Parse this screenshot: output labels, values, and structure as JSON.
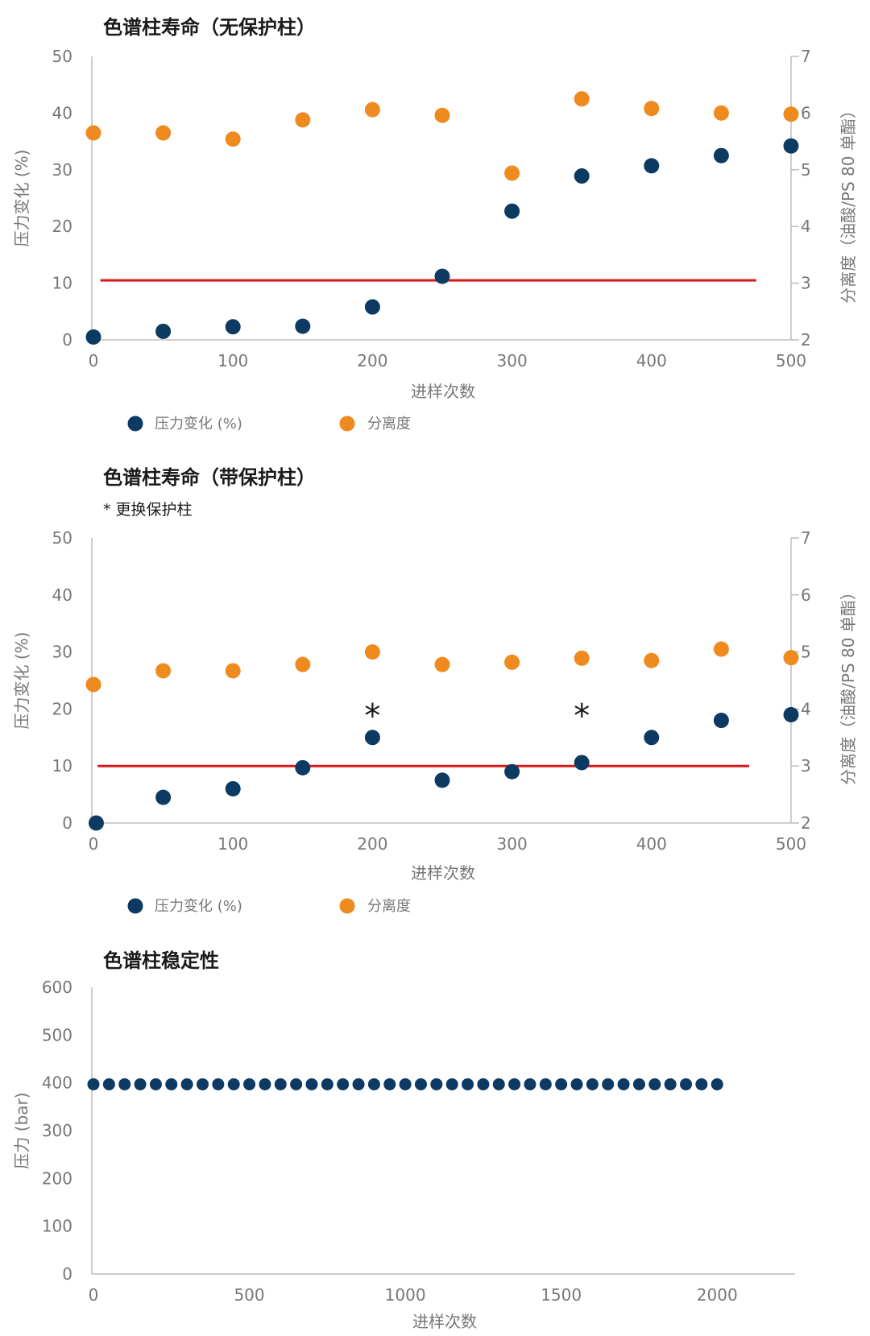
{
  "chart_data": [
    {
      "type": "scatter",
      "title": "色谱柱寿命（无保护柱）",
      "xlabel": "进样次数",
      "ylabel": "压力变化 (%)",
      "y2label": "分离度（油酸/PS 80 单酯）",
      "xlim": [
        0,
        500
      ],
      "ylim": [
        0,
        50
      ],
      "y2lim": [
        2,
        7
      ],
      "xticks": [
        "0",
        "100",
        "200",
        "300",
        "400",
        "500"
      ],
      "yticks": [
        "0",
        "10",
        "20",
        "30",
        "40",
        "50"
      ],
      "y2ticks": [
        "2",
        "3",
        "4",
        "5",
        "6",
        "7"
      ],
      "reference_line": {
        "y": 10.5,
        "x_range": [
          5,
          475
        ],
        "color": "#d7191c"
      },
      "series": [
        {
          "name": "压力变化 (%)",
          "axis": "left",
          "color": "#0d3a63",
          "x": [
            0,
            50,
            100,
            150,
            200,
            250,
            300,
            350,
            400,
            450,
            500
          ],
          "values": [
            0.5,
            1.5,
            2.3,
            2.4,
            5.8,
            11.2,
            22.7,
            28.9,
            30.7,
            32.5,
            34.2
          ]
        },
        {
          "name": "分离度",
          "axis": "right",
          "color": "#ee8a1e",
          "x": [
            0,
            50,
            100,
            150,
            200,
            250,
            300,
            350,
            400,
            450,
            500
          ],
          "values": [
            5.65,
            5.65,
            5.54,
            5.88,
            6.06,
            5.96,
            4.94,
            6.25,
            6.08,
            6.0,
            5.98
          ]
        }
      ],
      "legend": [
        "压力变化 (%)",
        "分离度"
      ]
    },
    {
      "type": "scatter",
      "title": "色谱柱寿命（带保护柱）",
      "subtitle": "* 更换保护柱",
      "xlabel": "进样次数",
      "ylabel": "压力变化 (%)",
      "y2label": "分离度（油酸/PS 80 单酯）",
      "xlim": [
        0,
        500
      ],
      "ylim": [
        0,
        50
      ],
      "y2lim": [
        2,
        7
      ],
      "xticks": [
        "0",
        "100",
        "200",
        "300",
        "400",
        "500"
      ],
      "yticks": [
        "0",
        "10",
        "20",
        "30",
        "40",
        "50"
      ],
      "y2ticks": [
        "2",
        "3",
        "4",
        "5",
        "6",
        "7"
      ],
      "reference_line": {
        "y": 10,
        "x_range": [
          3,
          470
        ],
        "color": "#d7191c"
      },
      "annotations": [
        {
          "text": "*",
          "x": 200,
          "y": 20
        },
        {
          "text": "*",
          "x": 350,
          "y": 20
        }
      ],
      "series": [
        {
          "name": "压力变化 (%)",
          "axis": "left",
          "color": "#0d3a63",
          "x": [
            2,
            50,
            100,
            150,
            200,
            250,
            300,
            350,
            400,
            450,
            500
          ],
          "values": [
            0,
            4.5,
            6,
            9.7,
            15,
            7.5,
            9,
            10.6,
            15,
            18,
            19
          ]
        },
        {
          "name": "分离度",
          "axis": "right",
          "color": "#ee8a1e",
          "x": [
            0,
            50,
            100,
            150,
            200,
            250,
            300,
            350,
            400,
            450,
            500
          ],
          "values": [
            4.43,
            4.67,
            4.67,
            4.78,
            5.0,
            4.78,
            4.82,
            4.89,
            4.85,
            5.05,
            4.9
          ]
        }
      ],
      "legend": [
        "压力变化 (%)",
        "分离度"
      ]
    },
    {
      "type": "scatter",
      "title": "色谱柱稳定性",
      "xlabel": "进样次数",
      "ylabel": "压力 (bar)",
      "xlim": [
        0,
        2250
      ],
      "ylim": [
        0,
        600
      ],
      "xticks": [
        "0",
        "500",
        "1000",
        "1500",
        "2000"
      ],
      "yticks": [
        "0",
        "100",
        "200",
        "300",
        "400",
        "500",
        "600"
      ],
      "series": [
        {
          "name": "压力 (bar)",
          "color": "#0d3a63",
          "x": [
            0,
            50,
            100,
            150,
            200,
            250,
            300,
            350,
            400,
            450,
            500,
            550,
            600,
            650,
            700,
            750,
            800,
            850,
            900,
            950,
            1000,
            1050,
            1100,
            1150,
            1200,
            1250,
            1300,
            1350,
            1400,
            1450,
            1500,
            1550,
            1600,
            1650,
            1700,
            1750,
            1800,
            1850,
            1900,
            1950,
            2000
          ],
          "values": [
            397,
            397,
            397,
            397,
            397,
            397,
            397,
            397,
            397,
            397,
            397,
            397,
            397,
            397,
            397,
            397,
            397,
            397,
            397,
            397,
            397,
            397,
            397,
            397,
            397,
            397,
            397,
            397,
            397,
            397,
            397,
            397,
            397,
            397,
            397,
            397,
            397,
            397,
            397,
            397,
            397
          ]
        }
      ]
    }
  ]
}
